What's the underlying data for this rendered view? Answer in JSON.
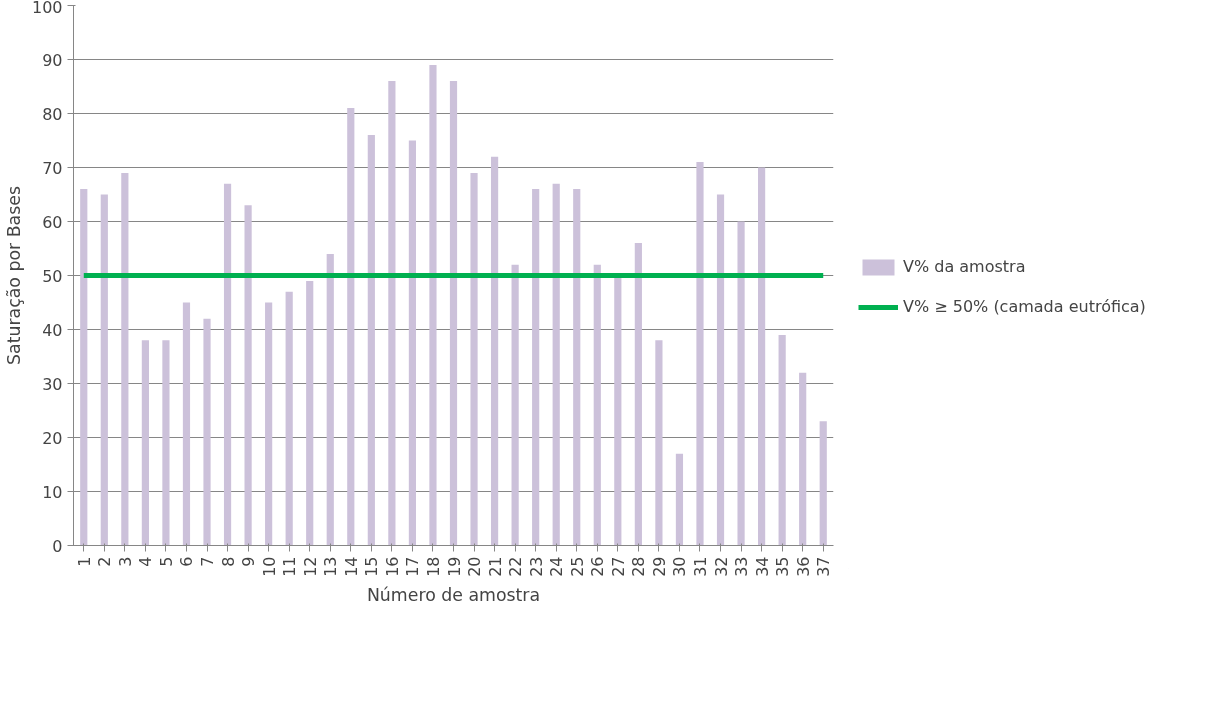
{
  "chart_data": {
    "type": "bar",
    "xlabel": "Número de amostra",
    "ylabel": "Saturação por Bases",
    "categories": [
      "1",
      "2",
      "3",
      "4",
      "5",
      "6",
      "7",
      "8",
      "9",
      "10",
      "11",
      "12",
      "13",
      "14",
      "15",
      "16",
      "17",
      "18",
      "19",
      "20",
      "21",
      "22",
      "23",
      "24",
      "25",
      "26",
      "27",
      "28",
      "29",
      "30",
      "31",
      "32",
      "33",
      "34",
      "35",
      "36",
      "37"
    ],
    "series": [
      {
        "name": "V% da amostra",
        "color": "#ccc1da",
        "values": [
          66,
          65,
          69,
          38,
          38,
          45,
          42,
          67,
          63,
          45,
          47,
          49,
          54,
          81,
          76,
          86,
          75,
          89,
          86,
          69,
          72,
          52,
          66,
          67,
          66,
          52,
          50,
          56,
          38,
          17,
          71,
          65,
          60,
          70,
          39,
          32,
          23
        ]
      },
      {
        "name": "V% ≥ 50% (camada eutrófica)",
        "color": "#00b050",
        "type": "line",
        "values": [
          50,
          50,
          50,
          50,
          50,
          50,
          50,
          50,
          50,
          50,
          50,
          50,
          50,
          50,
          50,
          50,
          50,
          50,
          50,
          50,
          50,
          50,
          50,
          50,
          50,
          50,
          50,
          50,
          50,
          50,
          50,
          50,
          50,
          50,
          50,
          50,
          50
        ]
      }
    ],
    "ylim": [
      0,
      100
    ],
    "yticks": [
      0,
      10,
      20,
      30,
      40,
      50,
      60,
      70,
      80,
      90,
      100
    ],
    "grid": "y",
    "legend": "right"
  }
}
